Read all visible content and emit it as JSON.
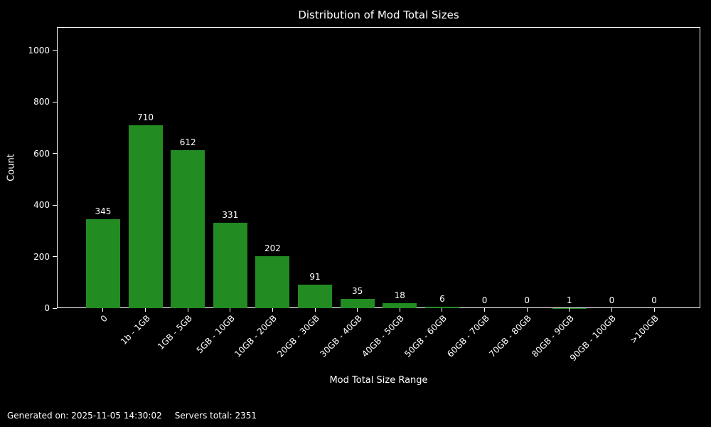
{
  "chart_data": {
    "type": "bar",
    "title": "Distribution of Mod Total Sizes",
    "xlabel": "Mod Total Size Range",
    "ylabel": "Count",
    "categories": [
      "0",
      "1b - 1GB",
      "1GB - 5GB",
      "5GB - 10GB",
      "10GB - 20GB",
      "20GB - 30GB",
      "30GB - 40GB",
      "40GB - 50GB",
      "50GB - 60GB",
      "60GB - 70GB",
      "70GB - 80GB",
      "80GB - 90GB",
      "90GB - 100GB",
      ">100GB"
    ],
    "values": [
      345,
      710,
      612,
      331,
      202,
      91,
      35,
      18,
      6,
      0,
      0,
      1,
      0,
      0
    ],
    "yticks": [
      0,
      200,
      400,
      600,
      800,
      1000
    ],
    "ylim": [
      0,
      1090
    ],
    "grid": false,
    "legend": null,
    "bar_labels_shown": true,
    "bar_color": "#228B22",
    "background_color": "#000000",
    "text_color": "#ffffff",
    "spine_color": "#ffffff"
  },
  "footer": {
    "generated_on": "Generated on: 2025-11-05 14:30:02",
    "servers_total": "Servers total: 2351"
  }
}
